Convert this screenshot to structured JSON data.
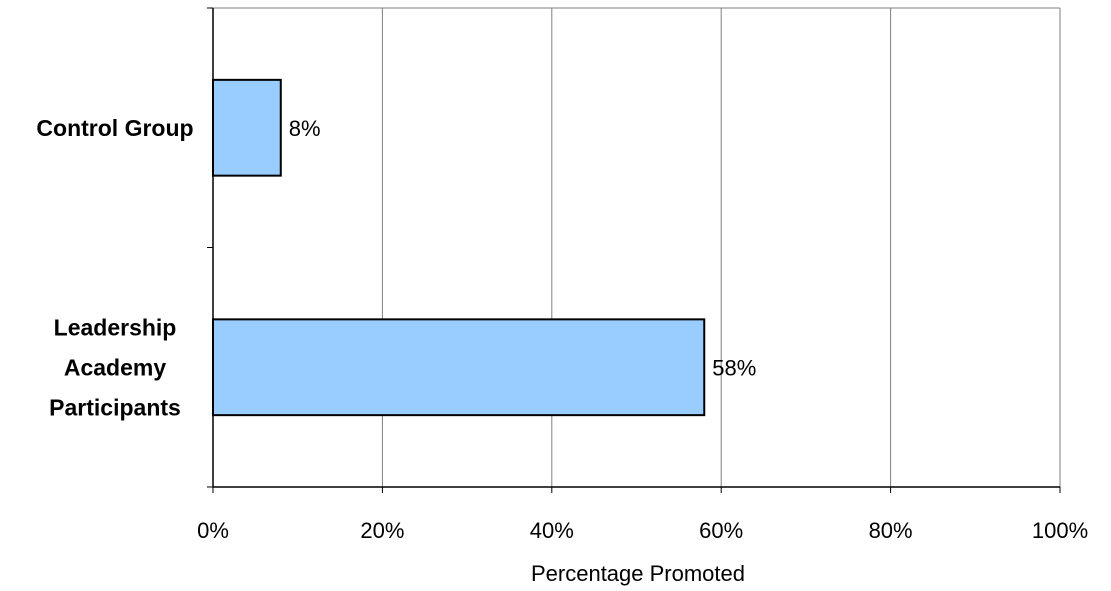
{
  "chart_data": {
    "type": "bar",
    "orientation": "horizontal",
    "categories": [
      "Control Group",
      "Leadership Academy Participants"
    ],
    "values": [
      8,
      58
    ],
    "data_labels": [
      "8%",
      "58%"
    ],
    "title": "",
    "xlabel": "Percentage Promoted",
    "ylabel": "",
    "xlim": [
      0,
      100
    ],
    "x_ticks": [
      0,
      20,
      40,
      60,
      80,
      100
    ],
    "x_tick_labels": [
      "0%",
      "20%",
      "40%",
      "60%",
      "80%",
      "100%"
    ],
    "grid": true,
    "legend": "none",
    "colors": {
      "bar_fill": "#99ccff",
      "bar_stroke": "#000000",
      "gridline": "#7f7f7f",
      "axis": "#7f7f7f"
    }
  }
}
